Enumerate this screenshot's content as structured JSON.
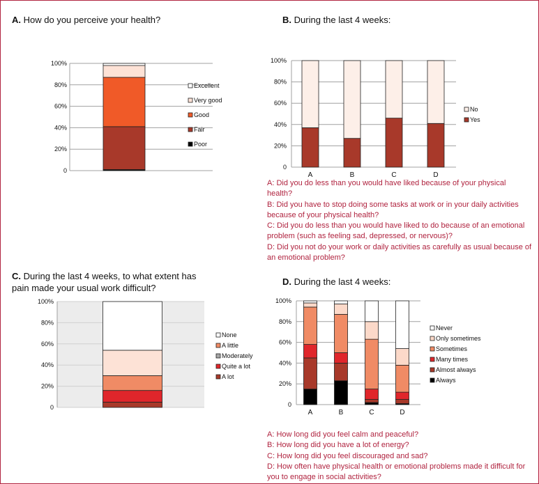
{
  "panel_a": {
    "letter": "A.",
    "title": "How do you perceive your health?"
  },
  "panel_b": {
    "letter": "B.",
    "title": "During the last 4 weeks:",
    "questions": [
      "A: Did you do less than you would have liked because of your physical health?",
      "B: Did you have to stop doing some tasks at work or in your daily activities because of your physical health?",
      "C: Did you do less than you would have liked to do because of an emotional problem (such as feeling sad, depressed, or nervous)?",
      "D: Did you not do your work or daily activities as carefully as usual because of an emotional problem?"
    ]
  },
  "panel_c": {
    "letter": "C.",
    "title_lines": [
      "During the last 4 weeks, to what extent has",
      "pain made your usual work difficult?"
    ]
  },
  "panel_d": {
    "letter": "D.",
    "title": "During the last 4 weeks:",
    "questions": [
      "A: How long did you feel calm and peaceful?",
      "B: How long did you have a lot of energy?",
      "C: How long did you feel discouraged and sad?",
      "D: How often have physical health or emotional problems made it difficult for you to engage in social activities?"
    ]
  },
  "chart_data": [
    {
      "id": "A",
      "type": "bar",
      "stacked": true,
      "ylim": [
        0,
        100
      ],
      "yticks": [
        "0",
        "20%",
        "40%",
        "60%",
        "80%",
        "100%"
      ],
      "categories": [
        ""
      ],
      "series": [
        {
          "name": "Poor",
          "color": "#000000",
          "values": [
            1
          ]
        },
        {
          "name": "Fair",
          "color": "#a8392a",
          "values": [
            40
          ]
        },
        {
          "name": "Good",
          "color": "#f05a28",
          "values": [
            46
          ]
        },
        {
          "name": "Very good",
          "color": "#fde2d6",
          "values": [
            11
          ]
        },
        {
          "name": "Excellent",
          "color": "#ffffff",
          "values": [
            2
          ]
        }
      ],
      "legend_order": [
        "Excellent",
        "Very good",
        "Good",
        "Fair",
        "Poor"
      ],
      "grid": true,
      "legend_position": "right"
    },
    {
      "id": "B",
      "type": "bar",
      "stacked": true,
      "ylim": [
        0,
        100
      ],
      "yticks": [
        "0",
        "20%",
        "40%",
        "60%",
        "80%",
        "100%"
      ],
      "categories": [
        "A",
        "B",
        "C",
        "D"
      ],
      "series": [
        {
          "name": "Yes",
          "color": "#a8392a",
          "values": [
            37,
            27,
            46,
            41
          ]
        },
        {
          "name": "No",
          "color": "#fdefe8",
          "values": [
            63,
            73,
            54,
            59
          ]
        }
      ],
      "legend_order": [
        "No",
        "Yes"
      ],
      "grid": true,
      "legend_position": "right"
    },
    {
      "id": "C",
      "type": "bar",
      "stacked": true,
      "ylim": [
        0,
        100
      ],
      "yticks": [
        "0",
        "20%",
        "40%",
        "60%",
        "80%",
        "100%"
      ],
      "categories": [
        ""
      ],
      "series": [
        {
          "name": "A lot",
          "color": "#a8392a",
          "values": [
            5
          ]
        },
        {
          "name": "Quite a lot",
          "color": "#e0262b",
          "values": [
            11
          ]
        },
        {
          "name": "Moderately",
          "color": "#f08b65",
          "values": [
            14
          ]
        },
        {
          "name": "A little",
          "color": "#fde2d6",
          "values": [
            24
          ]
        },
        {
          "name": "None",
          "color": "#ffffff",
          "values": [
            46
          ]
        }
      ],
      "legend_order": [
        "None",
        "A little",
        "Moderately",
        "Quite a lot",
        "A lot"
      ],
      "legend_colors": [
        "#ffffff",
        "#f08b65",
        "#a6a6a6",
        "#e0262b",
        "#a8392a"
      ],
      "grid": true,
      "legend_position": "right"
    },
    {
      "id": "D",
      "type": "bar",
      "stacked": true,
      "ylim": [
        0,
        100
      ],
      "yticks": [
        "0",
        "20%",
        "40%",
        "60%",
        "80%",
        "100%"
      ],
      "categories": [
        "A",
        "B",
        "C",
        "D"
      ],
      "series": [
        {
          "name": "Always",
          "color": "#000000",
          "values": [
            15,
            23,
            2,
            1
          ]
        },
        {
          "name": "Almost always",
          "color": "#a8392a",
          "values": [
            30,
            17,
            3,
            4
          ]
        },
        {
          "name": "Many times",
          "color": "#e0262b",
          "values": [
            13,
            10,
            10,
            7
          ]
        },
        {
          "name": "Sometimes",
          "color": "#f08b65",
          "values": [
            36,
            37,
            48,
            26
          ]
        },
        {
          "name": "Only sometimes",
          "color": "#fcd9c9",
          "values": [
            4,
            10,
            17,
            16
          ]
        },
        {
          "name": "Never",
          "color": "#ffffff",
          "values": [
            2,
            3,
            20,
            46
          ]
        }
      ],
      "legend_order": [
        "Never",
        "Only sometimes",
        "Sometimes",
        "Many times",
        "Almost always",
        "Always"
      ],
      "grid": true,
      "legend_position": "right"
    }
  ]
}
